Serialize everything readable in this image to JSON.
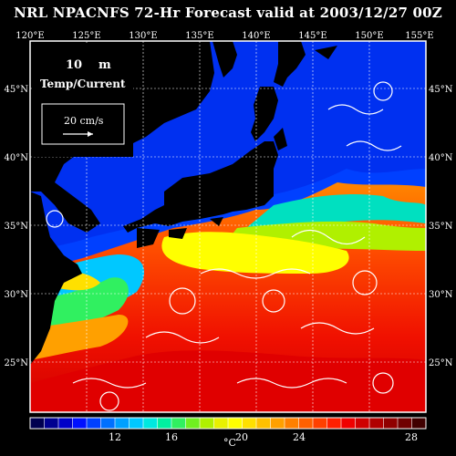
{
  "title": "NRL NPACNFS 72-Hr Forecast valid at 2003/12/27 00Z",
  "lon_labels": [
    "120°E",
    "125°E",
    "130°E",
    "135°E",
    "140°E",
    "145°E",
    "150°E",
    "155°E"
  ],
  "lat_labels": [
    "45°N",
    "40°N",
    "35°N",
    "30°N",
    "25°N"
  ],
  "depth_value": "10",
  "depth_unit": "m",
  "field_label": "Temp/Current",
  "scale_label": "20 cm/s",
  "colorbar": {
    "ticks": [
      "12",
      "16",
      "20",
      "24",
      "28"
    ],
    "unit": "°C",
    "colors": [
      "#000050",
      "#000090",
      "#0000c8",
      "#0010ff",
      "#0040ff",
      "#0070ff",
      "#00a0ff",
      "#00c8ff",
      "#00e8e0",
      "#00f0a0",
      "#30f060",
      "#70f020",
      "#b0f000",
      "#e8f000",
      "#ffff00",
      "#ffe000",
      "#ffc000",
      "#ffa000",
      "#ff8000",
      "#ff6000",
      "#ff4000",
      "#ff2000",
      "#f00000",
      "#d00000",
      "#b00000",
      "#900000",
      "#700000",
      "#400000"
    ]
  }
}
